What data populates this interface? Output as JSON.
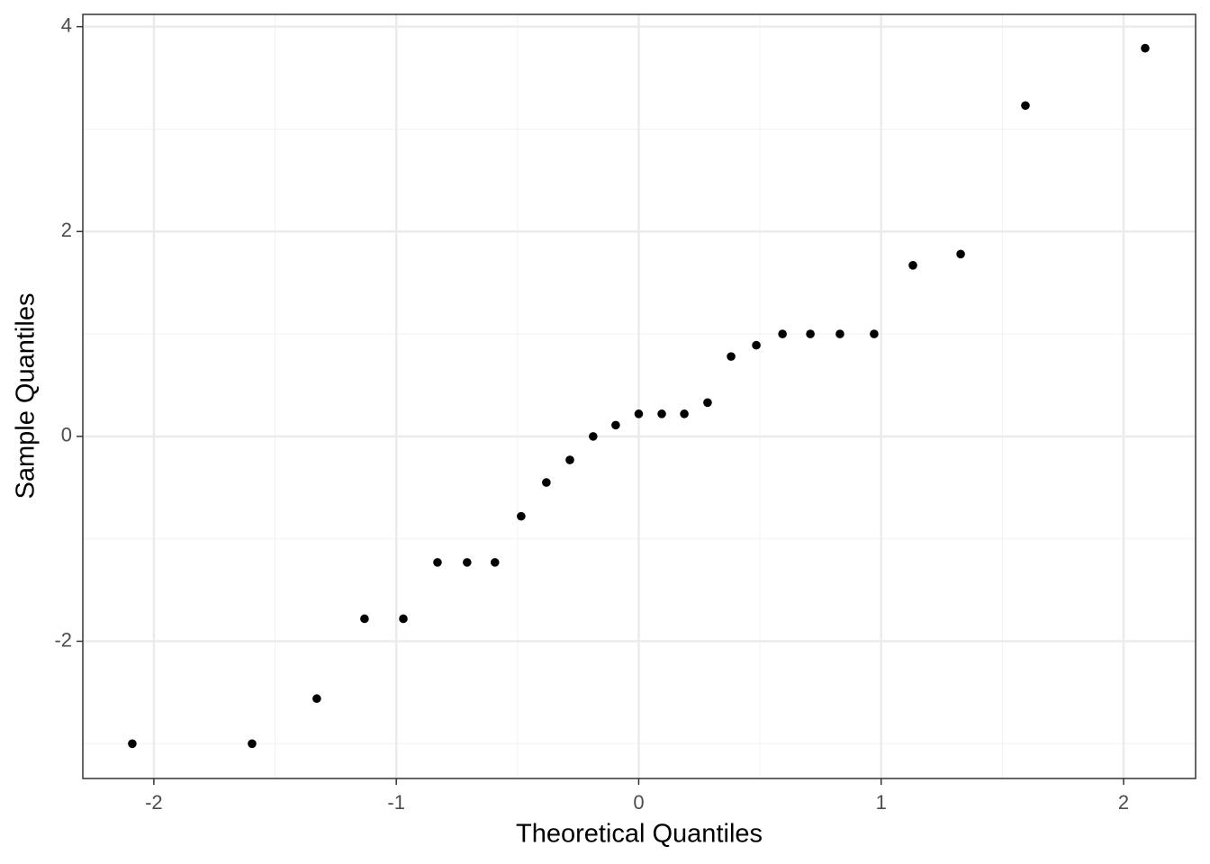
{
  "chart_data": {
    "type": "scatter",
    "x_label": "Theoretical Quantiles",
    "y_label": "Sample Quantiles",
    "x": [
      -2.089,
      -1.595,
      -1.328,
      -1.131,
      -0.971,
      -0.83,
      -0.708,
      -0.593,
      -0.485,
      -0.381,
      -0.284,
      -0.188,
      -0.095,
      0,
      0.095,
      0.188,
      0.284,
      0.381,
      0.485,
      0.593,
      0.708,
      0.83,
      0.971,
      1.131,
      1.328,
      1.595,
      2.089
    ],
    "series": [
      {
        "color": "#000000",
        "values": [
          -3.0,
          -3.0,
          -2.56,
          -1.78,
          -1.78,
          -1.23,
          -1.23,
          -1.23,
          -0.78,
          -0.45,
          -0.23,
          0,
          0.11,
          0.22,
          0.22,
          0.22,
          0.33,
          0.78,
          0.89,
          1.0,
          1.0,
          1.0,
          1.0,
          1.67,
          1.78,
          3.23,
          3.79
        ]
      }
    ],
    "xlim": [
      -2.293,
      2.297
    ],
    "ylim": [
      -3.34,
      4.12
    ],
    "xticks": [
      -2,
      -1,
      0,
      1,
      2
    ],
    "yticks": [
      -2,
      0,
      2,
      4
    ],
    "x_minor_ticks": [
      -1.5,
      -0.5,
      0.5,
      1.5
    ],
    "y_minor_ticks": [
      -3,
      -1,
      1,
      3
    ],
    "grid": true
  }
}
